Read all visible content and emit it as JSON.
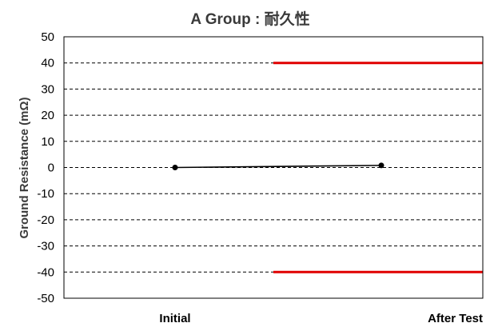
{
  "chart_data": {
    "type": "line",
    "title": "A Group : 耐久性",
    "xlabel": "",
    "ylabel": "Ground Resistance (mΩ)",
    "categories": [
      "Initial",
      "After Test"
    ],
    "ylim": [
      -50,
      50
    ],
    "yticks": [
      50,
      40,
      30,
      20,
      10,
      0,
      -10,
      -20,
      -30,
      -40,
      -50
    ],
    "grid": true,
    "legend": "none",
    "series": [
      {
        "values": [
          0.0,
          0.8
        ],
        "color": "#000000"
      }
    ],
    "limit_lines": [
      {
        "value": 40,
        "color": "#e00000",
        "start_fraction": 0.5
      },
      {
        "value": -40,
        "color": "#e00000",
        "start_fraction": 0.5
      }
    ]
  }
}
